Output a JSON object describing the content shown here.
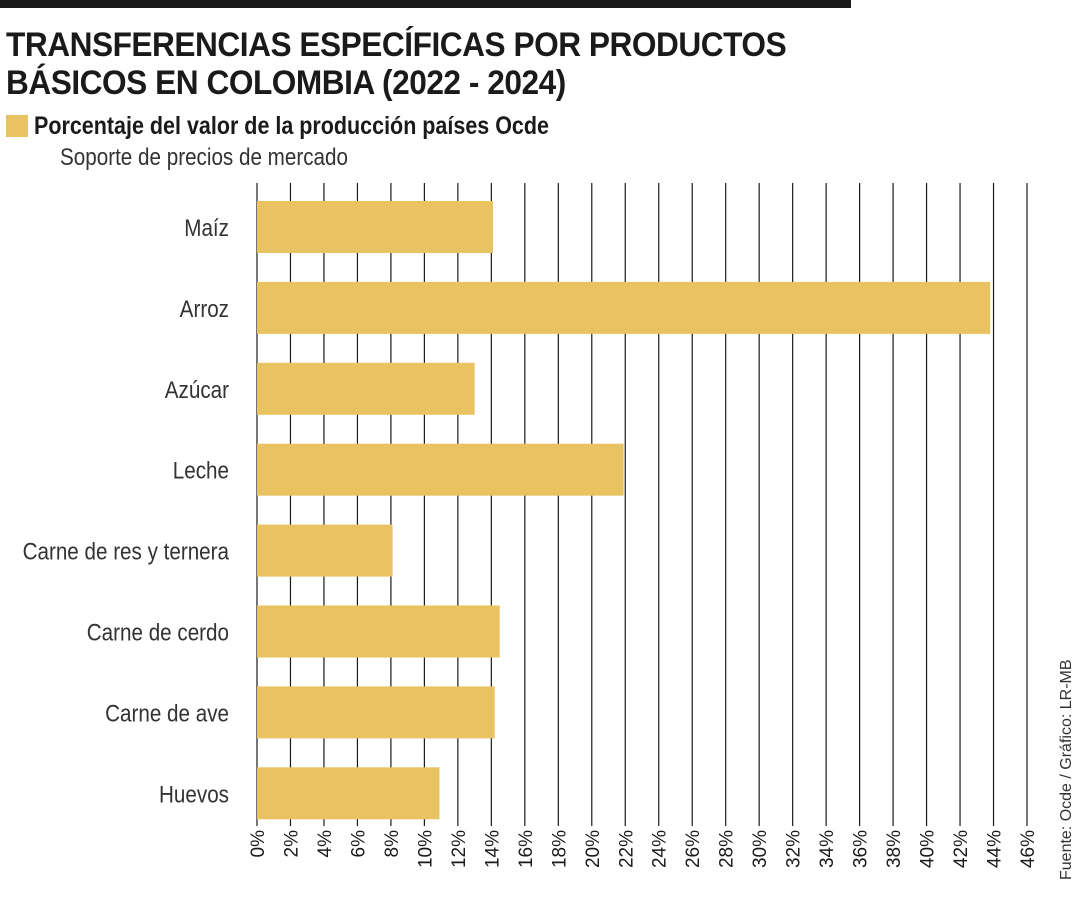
{
  "header": {
    "title_line1": "TRANSFERENCIAS ESPECÍFICAS POR PRODUCTOS",
    "title_line2": "BÁSICOS EN COLOMBIA (2022 - 2024)",
    "legend_label": "Porcentaje del valor de la producción países Ocde",
    "subtitle": "Soporte de precios de mercado"
  },
  "source": "Fuente: Ocde / Gráfico: LR-MB",
  "colors": {
    "bar": "#e9c262",
    "grid": "#1a1a1a",
    "text": "#1a1a1a"
  },
  "chart_data": {
    "type": "bar",
    "orientation": "horizontal",
    "title": "TRANSFERENCIAS ESPECÍFICAS POR PRODUCTOS BÁSICOS EN COLOMBIA (2022 - 2024)",
    "subtitle": "Soporte de precios de mercado",
    "categories": [
      "Maíz",
      "Arroz",
      "Azúcar",
      "Leche",
      "Carne de res y ternera",
      "Carne de cerdo",
      "Carne de ave",
      "Huevos"
    ],
    "series": [
      {
        "name": "Porcentaje del valor de la producción países Ocde",
        "values": [
          14.1,
          43.8,
          13.0,
          21.9,
          8.1,
          14.5,
          14.2,
          10.9
        ]
      }
    ],
    "xlim": [
      0,
      46
    ],
    "x_ticks": [
      "0%",
      "2%",
      "4%",
      "6%",
      "8%",
      "10%",
      "12%",
      "14%",
      "16%",
      "18%",
      "20%",
      "22%",
      "24%",
      "26%",
      "28%",
      "30%",
      "32%",
      "34%",
      "36%",
      "38%",
      "40%",
      "42%",
      "44%",
      "46%"
    ],
    "grid": true,
    "legend_position": "top-left"
  }
}
